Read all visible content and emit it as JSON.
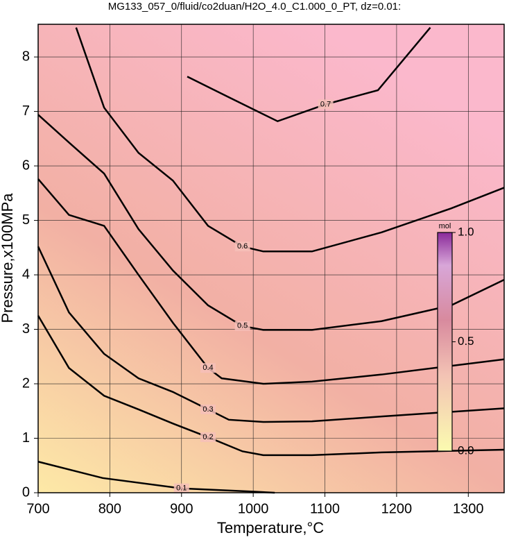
{
  "chart_data": {
    "type": "contour",
    "title": "MG133_057_0/fluid/co2duan/H2O_4.0_C1.000_0_PT, dz=0.01:",
    "x_label": "Temperature,°C",
    "y_label": "Pressure,x100MPa",
    "xlim": [
      700,
      1350
    ],
    "ylim": [
      0,
      8.6
    ],
    "xticks": [
      700,
      800,
      900,
      1000,
      1100,
      1200,
      1300
    ],
    "yticks": [
      0,
      1,
      2,
      3,
      4,
      5,
      6,
      7,
      8
    ],
    "grid": true,
    "contours": [
      {
        "level": 0.1,
        "x": [
          700,
          790,
          900,
          1000,
          1030
        ],
        "y": [
          0.57,
          0.27,
          0.08,
          0.02,
          0
        ]
      },
      {
        "level": 0.2,
        "x": [
          700,
          743,
          792,
          840,
          888,
          937,
          985,
          1014,
          1082,
          1179,
          1350
        ],
        "y": [
          3.25,
          2.29,
          1.78,
          1.53,
          1.27,
          1.02,
          0.76,
          0.69,
          0.69,
          0.74,
          0.79
        ]
      },
      {
        "level": 0.3,
        "x": [
          700,
          743,
          792,
          840,
          888,
          937,
          966,
          1014,
          1082,
          1179,
          1350
        ],
        "y": [
          4.52,
          3.31,
          2.55,
          2.1,
          1.85,
          1.53,
          1.34,
          1.3,
          1.31,
          1.4,
          1.55
        ]
      },
      {
        "level": 0.4,
        "x": [
          700,
          743,
          792,
          840,
          888,
          937,
          956,
          1014,
          1082,
          1179,
          1350
        ],
        "y": [
          5.76,
          5.1,
          4.9,
          4.0,
          3.12,
          2.29,
          2.1,
          2.0,
          2.04,
          2.17,
          2.45
        ]
      },
      {
        "level": 0.5,
        "x": [
          700,
          743,
          792,
          840,
          888,
          937,
          985,
          1014,
          1082,
          1179,
          1276,
          1350
        ],
        "y": [
          6.94,
          6.43,
          5.86,
          4.84,
          4.08,
          3.44,
          3.06,
          2.99,
          2.99,
          3.15,
          3.44,
          3.91
        ]
      },
      {
        "level": 0.6,
        "x": [
          753,
          792,
          840,
          888,
          937,
          985,
          1014,
          1082,
          1179,
          1276,
          1350
        ],
        "y": [
          8.54,
          7.07,
          6.24,
          5.73,
          4.9,
          4.52,
          4.43,
          4.43,
          4.78,
          5.22,
          5.6
        ]
      },
      {
        "level": 0.7,
        "x": [
          908,
          966,
          1034,
          1101,
          1174,
          1247
        ],
        "y": [
          7.64,
          7.26,
          6.82,
          7.13,
          7.39,
          8.54
        ]
      }
    ],
    "colorbar": {
      "label": "mol",
      "lim": [
        0,
        1
      ],
      "ticks": [
        {
          "value": 0,
          "label": "0.0"
        },
        {
          "value": 0.5,
          "label": "0.5"
        },
        {
          "value": 1,
          "label": "1.0"
        }
      ]
    }
  }
}
